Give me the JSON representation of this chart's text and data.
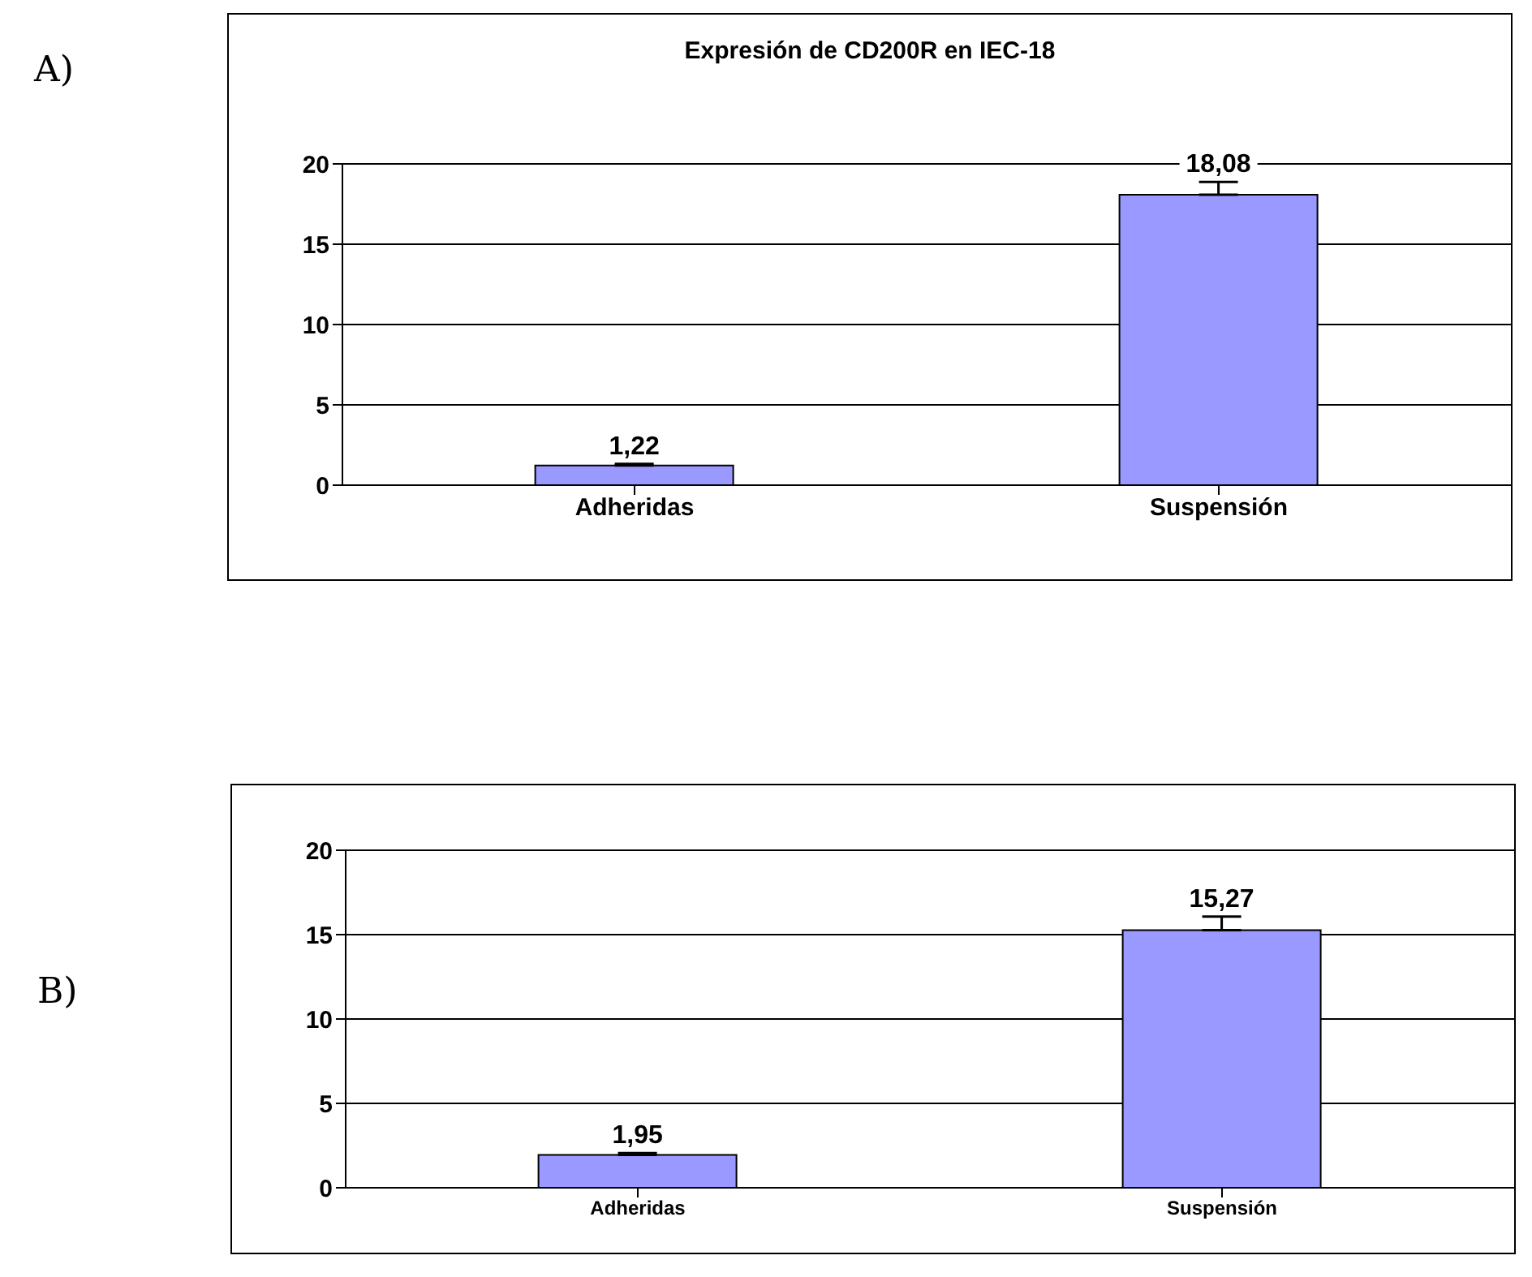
{
  "chart_data": [
    {
      "type": "bar",
      "title": "Expresión de CD200R en IEC-18",
      "categories": [
        "Adheridas",
        "Suspensión"
      ],
      "values": [
        1.22,
        18.08
      ],
      "errors": [
        0.1,
        0.8
      ],
      "value_labels": [
        "1,22",
        "18,08"
      ],
      "color": "#9999ff",
      "ylim": [
        0,
        20
      ],
      "yticks": [
        0,
        5,
        10,
        15,
        20
      ],
      "grid": "y",
      "annotations": [
        "A)"
      ]
    },
    {
      "type": "bar",
      "categories": [
        "Adheridas",
        "Suspensión"
      ],
      "values": [
        1.95,
        15.27
      ],
      "errors": [
        0.1,
        0.8
      ],
      "value_labels": [
        "1,95",
        "15,27"
      ],
      "color": "#9999ff",
      "ylim": [
        0,
        20
      ],
      "yticks": [
        0,
        5,
        10,
        15,
        20
      ],
      "grid": "y",
      "annotations": [
        "B)"
      ]
    }
  ]
}
